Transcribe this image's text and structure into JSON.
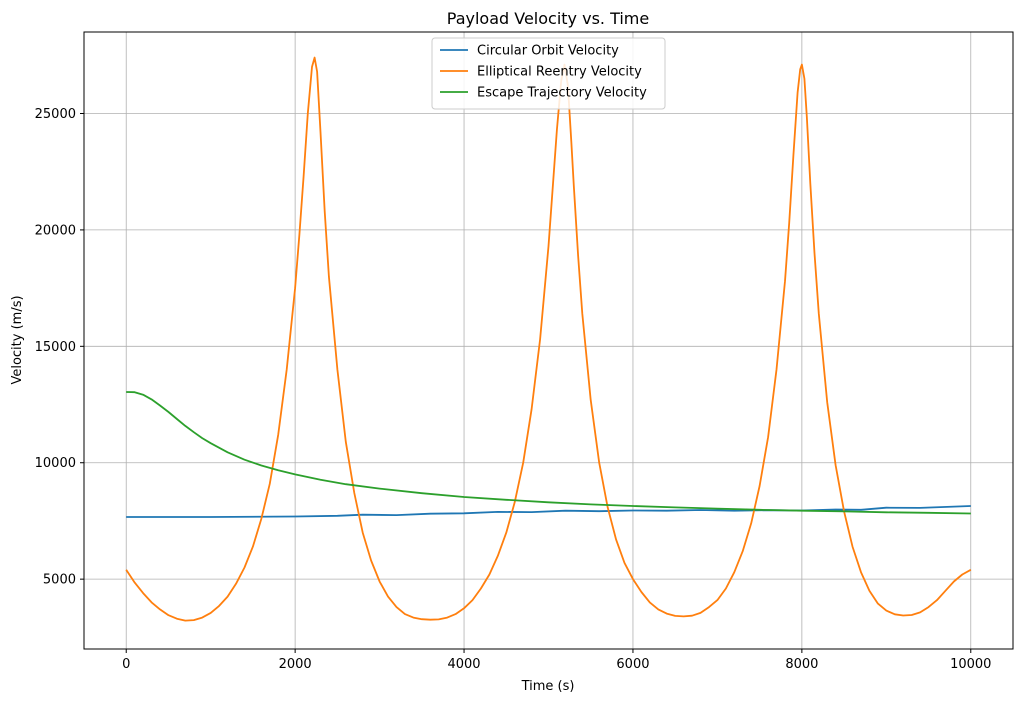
{
  "chart_data": {
    "type": "line",
    "title": "Payload Velocity vs. Time",
    "xlabel": "Time (s)",
    "ylabel": "Velocity (m/s)",
    "xlim": [
      -500,
      10500
    ],
    "ylim": [
      2000,
      28500
    ],
    "xticks": [
      0,
      2000,
      4000,
      6000,
      8000,
      10000
    ],
    "yticks": [
      5000,
      10000,
      15000,
      20000,
      25000
    ],
    "grid": true,
    "legend_position": "upper center",
    "series": [
      {
        "name": "Circular Orbit Velocity",
        "color": "#1f77b4",
        "x": [
          0,
          1000,
          2000,
          2500,
          2800,
          3200,
          3600,
          4000,
          4400,
          4800,
          5200,
          5600,
          6000,
          6400,
          6800,
          7200,
          7600,
          8000,
          8400,
          8700,
          9000,
          9400,
          10000
        ],
        "y": [
          7670,
          7670,
          7690,
          7720,
          7770,
          7750,
          7810,
          7830,
          7890,
          7880,
          7940,
          7920,
          7950,
          7940,
          7970,
          7940,
          7960,
          7950,
          7990,
          7980,
          8070,
          8060,
          8140
        ]
      },
      {
        "name": "Elliptical Reentry Velocity",
        "color": "#ff7f0e",
        "x": [
          0,
          100,
          200,
          300,
          400,
          500,
          600,
          700,
          800,
          900,
          1000,
          1100,
          1200,
          1300,
          1400,
          1500,
          1600,
          1700,
          1800,
          1900,
          2000,
          2050,
          2100,
          2150,
          2200,
          2230,
          2260,
          2300,
          2350,
          2400,
          2500,
          2600,
          2700,
          2800,
          2900,
          3000,
          3100,
          3200,
          3300,
          3400,
          3500,
          3600,
          3700,
          3800,
          3900,
          4000,
          4100,
          4200,
          4300,
          4400,
          4500,
          4600,
          4700,
          4800,
          4900,
          5000,
          5050,
          5100,
          5150,
          5190,
          5230,
          5270,
          5300,
          5350,
          5400,
          5500,
          5600,
          5700,
          5800,
          5900,
          6000,
          6100,
          6200,
          6300,
          6400,
          6500,
          6600,
          6700,
          6800,
          6900,
          7000,
          7100,
          7200,
          7300,
          7400,
          7500,
          7600,
          7700,
          7800,
          7850,
          7900,
          7950,
          7980,
          8000,
          8030,
          8060,
          8100,
          8150,
          8200,
          8300,
          8400,
          8500,
          8600,
          8700,
          8800,
          8900,
          9000,
          9100,
          9200,
          9300,
          9400,
          9500,
          9600,
          9700,
          9800,
          9900,
          10000
        ],
        "y": [
          5400,
          4850,
          4400,
          4000,
          3700,
          3450,
          3300,
          3220,
          3240,
          3350,
          3550,
          3850,
          4250,
          4800,
          5500,
          6400,
          7600,
          9100,
          11200,
          14000,
          17500,
          19800,
          22300,
          25000,
          27000,
          27400,
          26800,
          24200,
          20800,
          18000,
          14000,
          10900,
          8700,
          7000,
          5800,
          4900,
          4250,
          3800,
          3500,
          3350,
          3280,
          3260,
          3270,
          3350,
          3500,
          3750,
          4100,
          4600,
          5200,
          6000,
          7000,
          8300,
          10000,
          12300,
          15300,
          19300,
          21800,
          24300,
          26400,
          27100,
          26200,
          23800,
          21900,
          18900,
          16400,
          12700,
          10000,
          8100,
          6700,
          5700,
          5000,
          4450,
          4000,
          3700,
          3520,
          3420,
          3400,
          3430,
          3550,
          3800,
          4100,
          4600,
          5300,
          6200,
          7400,
          9000,
          11100,
          14000,
          17800,
          20300,
          23200,
          25900,
          26900,
          27100,
          26500,
          24800,
          22000,
          19000,
          16400,
          12600,
          9900,
          7900,
          6400,
          5300,
          4500,
          3950,
          3650,
          3490,
          3440,
          3460,
          3570,
          3800,
          4100,
          4500,
          4900,
          5200,
          5400
        ]
      },
      {
        "name": "Escape Trajectory Velocity",
        "color": "#2ca02c",
        "x": [
          0,
          100,
          200,
          300,
          400,
          500,
          600,
          700,
          800,
          900,
          1000,
          1200,
          1400,
          1600,
          1800,
          2000,
          2300,
          2600,
          3000,
          3500,
          4000,
          4500,
          5000,
          5500,
          6000,
          6500,
          7000,
          7500,
          8000,
          8500,
          9000,
          9500,
          10000
        ],
        "y": [
          13040,
          13030,
          12920,
          12720,
          12460,
          12180,
          11880,
          11580,
          11310,
          11060,
          10840,
          10450,
          10130,
          9880,
          9680,
          9500,
          9270,
          9080,
          8890,
          8690,
          8530,
          8410,
          8300,
          8210,
          8140,
          8080,
          8030,
          7980,
          7940,
          7910,
          7870,
          7850,
          7820
        ]
      }
    ]
  }
}
